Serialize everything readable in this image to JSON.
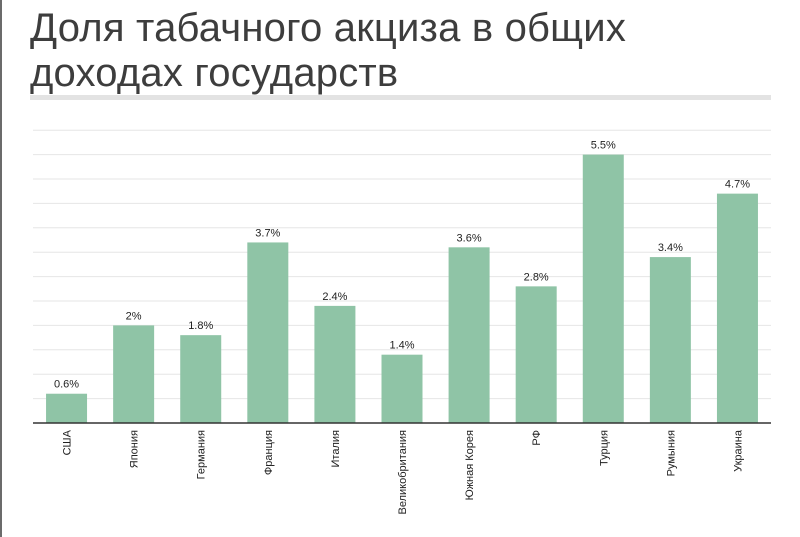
{
  "chart_data": {
    "type": "bar",
    "title": "Доля табачного акциза в общих доходах государств",
    "categories": [
      "США",
      "Япония",
      "Германия",
      "Франция",
      "Италия",
      "Великобритания",
      "Южная Корея",
      "РФ",
      "Турция",
      "Румыния",
      "Украина"
    ],
    "values": [
      0.6,
      2,
      1.8,
      3.7,
      2.4,
      1.4,
      3.6,
      2.8,
      5.5,
      3.4,
      4.7
    ],
    "value_labels": [
      "0.6%",
      "2%",
      "1.8%",
      "3.7%",
      "2.4%",
      "1.4%",
      "3.6%",
      "2.8%",
      "5.5%",
      "3.4%",
      "4.7%"
    ],
    "ylim": [
      0,
      6
    ],
    "grid": true,
    "xlabel": "",
    "ylabel": "",
    "bar_color": "#8fc4a6"
  }
}
